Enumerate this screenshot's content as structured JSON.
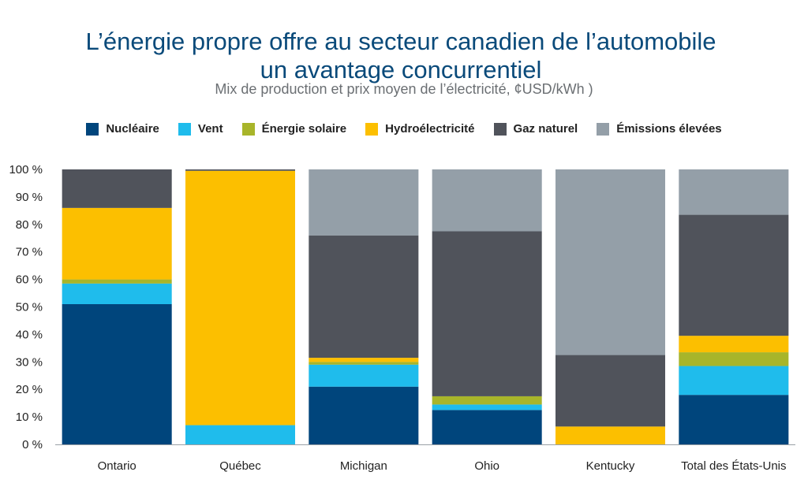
{
  "title_line1": "L’énergie propre offre au secteur canadien de l’automobile",
  "title_line2": "un avantage concurrentiel",
  "subtitle": "Mix de production et prix moyen de l’électricité, ¢USD/kWh )",
  "colors": {
    "background_column": "#e8ebee",
    "Nucléaire": "#00457c",
    "Vent": "#1fbcec",
    "Énergie solaire": "#a8b52a",
    "Hydroélectricité": "#fcbf00",
    "Gaz naturel": "#50535b",
    "Émissions élevées": "#949fa8"
  },
  "chart_data": {
    "type": "bar",
    "stacked": true,
    "categories": [
      "Ontario",
      "Québec",
      "Michigan",
      "Ohio",
      "Kentucky",
      "Total des États-Unis"
    ],
    "ylim": [
      0,
      100
    ],
    "yticks": [
      "0 %",
      "10 %",
      "20 %",
      "30 %",
      "40 %",
      "50 %",
      "60 %",
      "70 %",
      "80 %",
      "90 %",
      "100 %"
    ],
    "legend_position": "top",
    "series": [
      {
        "name": "Nucléaire",
        "values": [
          51,
          0,
          21,
          12.5,
          0,
          18
        ]
      },
      {
        "name": "Vent",
        "values": [
          7.5,
          7,
          8,
          2,
          0,
          10.5
        ]
      },
      {
        "name": "Énergie solaire",
        "values": [
          1.5,
          0,
          1,
          3,
          0,
          5
        ]
      },
      {
        "name": "Hydroélectricité",
        "values": [
          26,
          92.5,
          1.5,
          0,
          6.5,
          6
        ]
      },
      {
        "name": "Gaz naturel",
        "values": [
          14,
          0.5,
          44.5,
          60,
          26,
          44
        ]
      },
      {
        "name": "Émissions élevées",
        "values": [
          0,
          0,
          24,
          22.5,
          67.5,
          16.5
        ]
      }
    ]
  }
}
